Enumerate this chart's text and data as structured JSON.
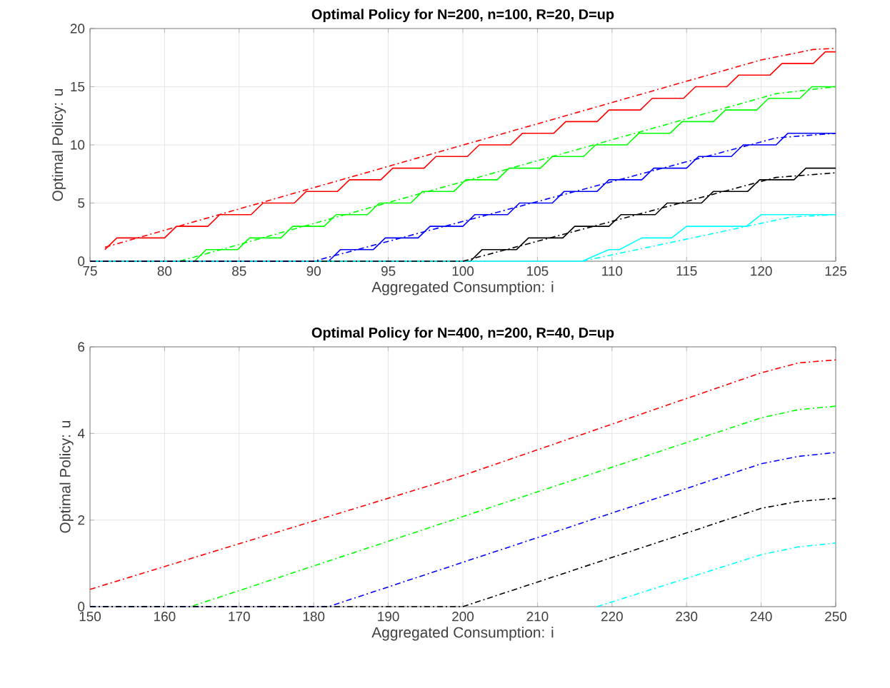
{
  "chart_data": [
    {
      "type": "line",
      "title": "Optimal Policy for N=200, n=100, R=20, D=up",
      "xlabel": "Aggregated Consumption: i",
      "ylabel": "Optimal Policy: u",
      "xlim": [
        75,
        125
      ],
      "ylim": [
        0,
        20
      ],
      "xticks": [
        75,
        80,
        85,
        90,
        95,
        100,
        105,
        110,
        115,
        120,
        125
      ],
      "yticks": [
        0,
        5,
        10,
        15,
        20
      ],
      "grid": true,
      "marker": "none",
      "series": [
        {
          "color": "#ff0000",
          "line_style": "solid",
          "x": [
            76,
            76.8,
            80,
            80.8,
            82.9,
            83.7,
            85.8,
            86.6,
            88.7,
            89.5,
            91.6,
            92.4,
            94.5,
            95.3,
            97.4,
            98.2,
            100.3,
            101.1,
            103.2,
            104,
            106.1,
            106.9,
            109,
            109.8,
            111.9,
            112.7,
            114.8,
            115.6,
            117.7,
            118.5,
            120.6,
            121.4,
            123.5,
            124.3,
            125
          ],
          "values": [
            1,
            2,
            2,
            3,
            3,
            4,
            4,
            5,
            5,
            6,
            6,
            7,
            7,
            8,
            8,
            9,
            9,
            10,
            10,
            11,
            11,
            12,
            12,
            13,
            13,
            14,
            14,
            15,
            15,
            16,
            16,
            17,
            17,
            18,
            18
          ]
        },
        {
          "color": "#00ff00",
          "line_style": "solid",
          "x": [
            75,
            82,
            82.8,
            84.9,
            85.7,
            87.8,
            88.6,
            90.7,
            91.5,
            93.6,
            94.4,
            96.5,
            97.3,
            99.4,
            100.2,
            102.3,
            103.1,
            105.2,
            106,
            108.1,
            108.9,
            111,
            111.8,
            113.9,
            114.7,
            116.8,
            117.6,
            119.7,
            120.5,
            122.6,
            123.4,
            125
          ],
          "values": [
            0,
            0,
            1,
            1,
            2,
            2,
            3,
            3,
            4,
            4,
            5,
            5,
            6,
            6,
            7,
            7,
            8,
            8,
            9,
            9,
            10,
            10,
            11,
            11,
            12,
            12,
            13,
            13,
            14,
            14,
            15,
            15
          ]
        },
        {
          "color": "#0000ff",
          "line_style": "solid",
          "x": [
            75,
            91,
            91.8,
            94,
            94.8,
            97,
            97.8,
            100,
            100.8,
            103,
            103.8,
            106,
            106.8,
            109,
            109.8,
            112,
            112.8,
            115,
            115.8,
            118,
            118.8,
            121,
            121.8,
            125
          ],
          "values": [
            0,
            0,
            1,
            1,
            2,
            2,
            3,
            3,
            4,
            4,
            5,
            5,
            6,
            6,
            7,
            7,
            8,
            8,
            9,
            9,
            10,
            10,
            11,
            11
          ]
        },
        {
          "color": "#000000",
          "line_style": "solid",
          "x": [
            75,
            100.5,
            101.3,
            103.6,
            104.4,
            106.7,
            107.5,
            109.8,
            110.6,
            112.9,
            113.7,
            116,
            116.8,
            119.1,
            119.9,
            122.2,
            123,
            125
          ],
          "values": [
            0,
            0,
            1,
            1,
            2,
            2,
            3,
            3,
            4,
            4,
            5,
            5,
            6,
            6,
            7,
            7,
            8,
            8
          ]
        },
        {
          "color": "#00ffff",
          "line_style": "solid",
          "x": [
            75,
            108,
            109.8,
            110.5,
            112,
            114,
            115,
            119,
            120,
            125
          ],
          "values": [
            0,
            0,
            1,
            1,
            2,
            2,
            3,
            3,
            4,
            4
          ]
        },
        {
          "color": "#ff0000",
          "line_style": "dashdot",
          "x": [
            76,
            120,
            123.5,
            125
          ],
          "values": [
            1.2,
            17.3,
            18.2,
            18.3
          ]
        },
        {
          "color": "#00ff00",
          "line_style": "dashdot",
          "x": [
            75,
            81,
            121,
            125
          ],
          "values": [
            0,
            0,
            14.4,
            15
          ]
        },
        {
          "color": "#0000ff",
          "line_style": "dashdot",
          "x": [
            75,
            90,
            121,
            125
          ],
          "values": [
            0,
            0,
            10.6,
            11
          ]
        },
        {
          "color": "#000000",
          "line_style": "dashdot",
          "x": [
            75,
            100,
            121,
            125
          ],
          "values": [
            0,
            0,
            7.2,
            7.6
          ]
        },
        {
          "color": "#00ffff",
          "line_style": "dashdot",
          "x": [
            108,
            122,
            125
          ],
          "values": [
            0,
            3.8,
            4
          ]
        }
      ]
    },
    {
      "type": "line",
      "title": "Optimal Policy for N=400, n=200, R=40, D=up",
      "xlabel": "Aggregated Consumption: i",
      "ylabel": "Optimal Policy: u",
      "xlim": [
        150,
        250
      ],
      "ylim": [
        0,
        6
      ],
      "xticks": [
        150,
        160,
        170,
        180,
        190,
        200,
        210,
        220,
        230,
        240,
        250
      ],
      "yticks": [
        0,
        2,
        4,
        6
      ],
      "grid": true,
      "marker": "none",
      "series": [
        {
          "color": "#ff0000",
          "line_style": "dashdot",
          "x": [
            150,
            200,
            240,
            245,
            250
          ],
          "values": [
            0.4,
            3.03,
            5.4,
            5.63,
            5.7
          ]
        },
        {
          "color": "#00ff00",
          "line_style": "dashdot",
          "x": [
            150,
            163.5,
            240,
            245,
            250
          ],
          "values": [
            0,
            0,
            4.36,
            4.55,
            4.63
          ]
        },
        {
          "color": "#0000ff",
          "line_style": "dashdot",
          "x": [
            150,
            182,
            240,
            245,
            250
          ],
          "values": [
            0,
            0,
            3.3,
            3.47,
            3.56
          ]
        },
        {
          "color": "#000000",
          "line_style": "dashdot",
          "x": [
            150,
            200,
            240,
            245,
            250
          ],
          "values": [
            0,
            0,
            2.27,
            2.43,
            2.5
          ]
        },
        {
          "color": "#00ffff",
          "line_style": "dashdot",
          "x": [
            218,
            240,
            245,
            250
          ],
          "values": [
            0,
            1.2,
            1.38,
            1.47
          ]
        }
      ]
    }
  ]
}
